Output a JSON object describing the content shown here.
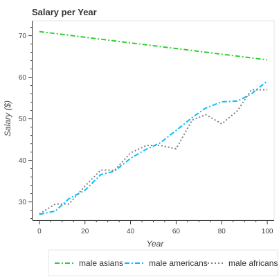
{
  "chart_data": {
    "type": "line",
    "title": "Salary per Year",
    "xlabel": "Year",
    "ylabel": "Salary ($)",
    "xlim": [
      -3,
      103
    ],
    "ylim": [
      25.6,
      73.6
    ],
    "xticks": [
      0,
      20,
      40,
      60,
      80,
      100
    ],
    "yticks": [
      30,
      40,
      50,
      60,
      70
    ],
    "grid": false,
    "legend_position": "bottom",
    "series": [
      {
        "name": "male asians",
        "color": "#32cd32",
        "dash": "dash-dot",
        "x": [
          0,
          100
        ],
        "y": [
          71.0,
          64.2
        ]
      },
      {
        "name": "male americans",
        "color": "#00bfff",
        "dash": "dash-dot",
        "x": [
          0,
          7,
          13,
          20,
          27,
          33,
          40,
          47,
          53,
          60,
          67,
          73,
          80,
          87,
          93,
          100
        ],
        "y": [
          27.0,
          27.8,
          30.8,
          32.8,
          36.6,
          37.4,
          40.5,
          42.7,
          44.2,
          47.2,
          50.3,
          52.6,
          54.1,
          54.3,
          56.0,
          59.1
        ]
      },
      {
        "name": "male africans",
        "color": "#808080",
        "dash": "dotted",
        "x": [
          0,
          7,
          13,
          20,
          27,
          33,
          40,
          47,
          53,
          60,
          67,
          73,
          80,
          87,
          93,
          100
        ],
        "y": [
          27.1,
          29.5,
          29.5,
          33.8,
          37.7,
          37.6,
          41.8,
          43.6,
          43.6,
          42.8,
          49.7,
          51.0,
          48.8,
          52.0,
          57.0,
          57.0
        ]
      }
    ]
  }
}
